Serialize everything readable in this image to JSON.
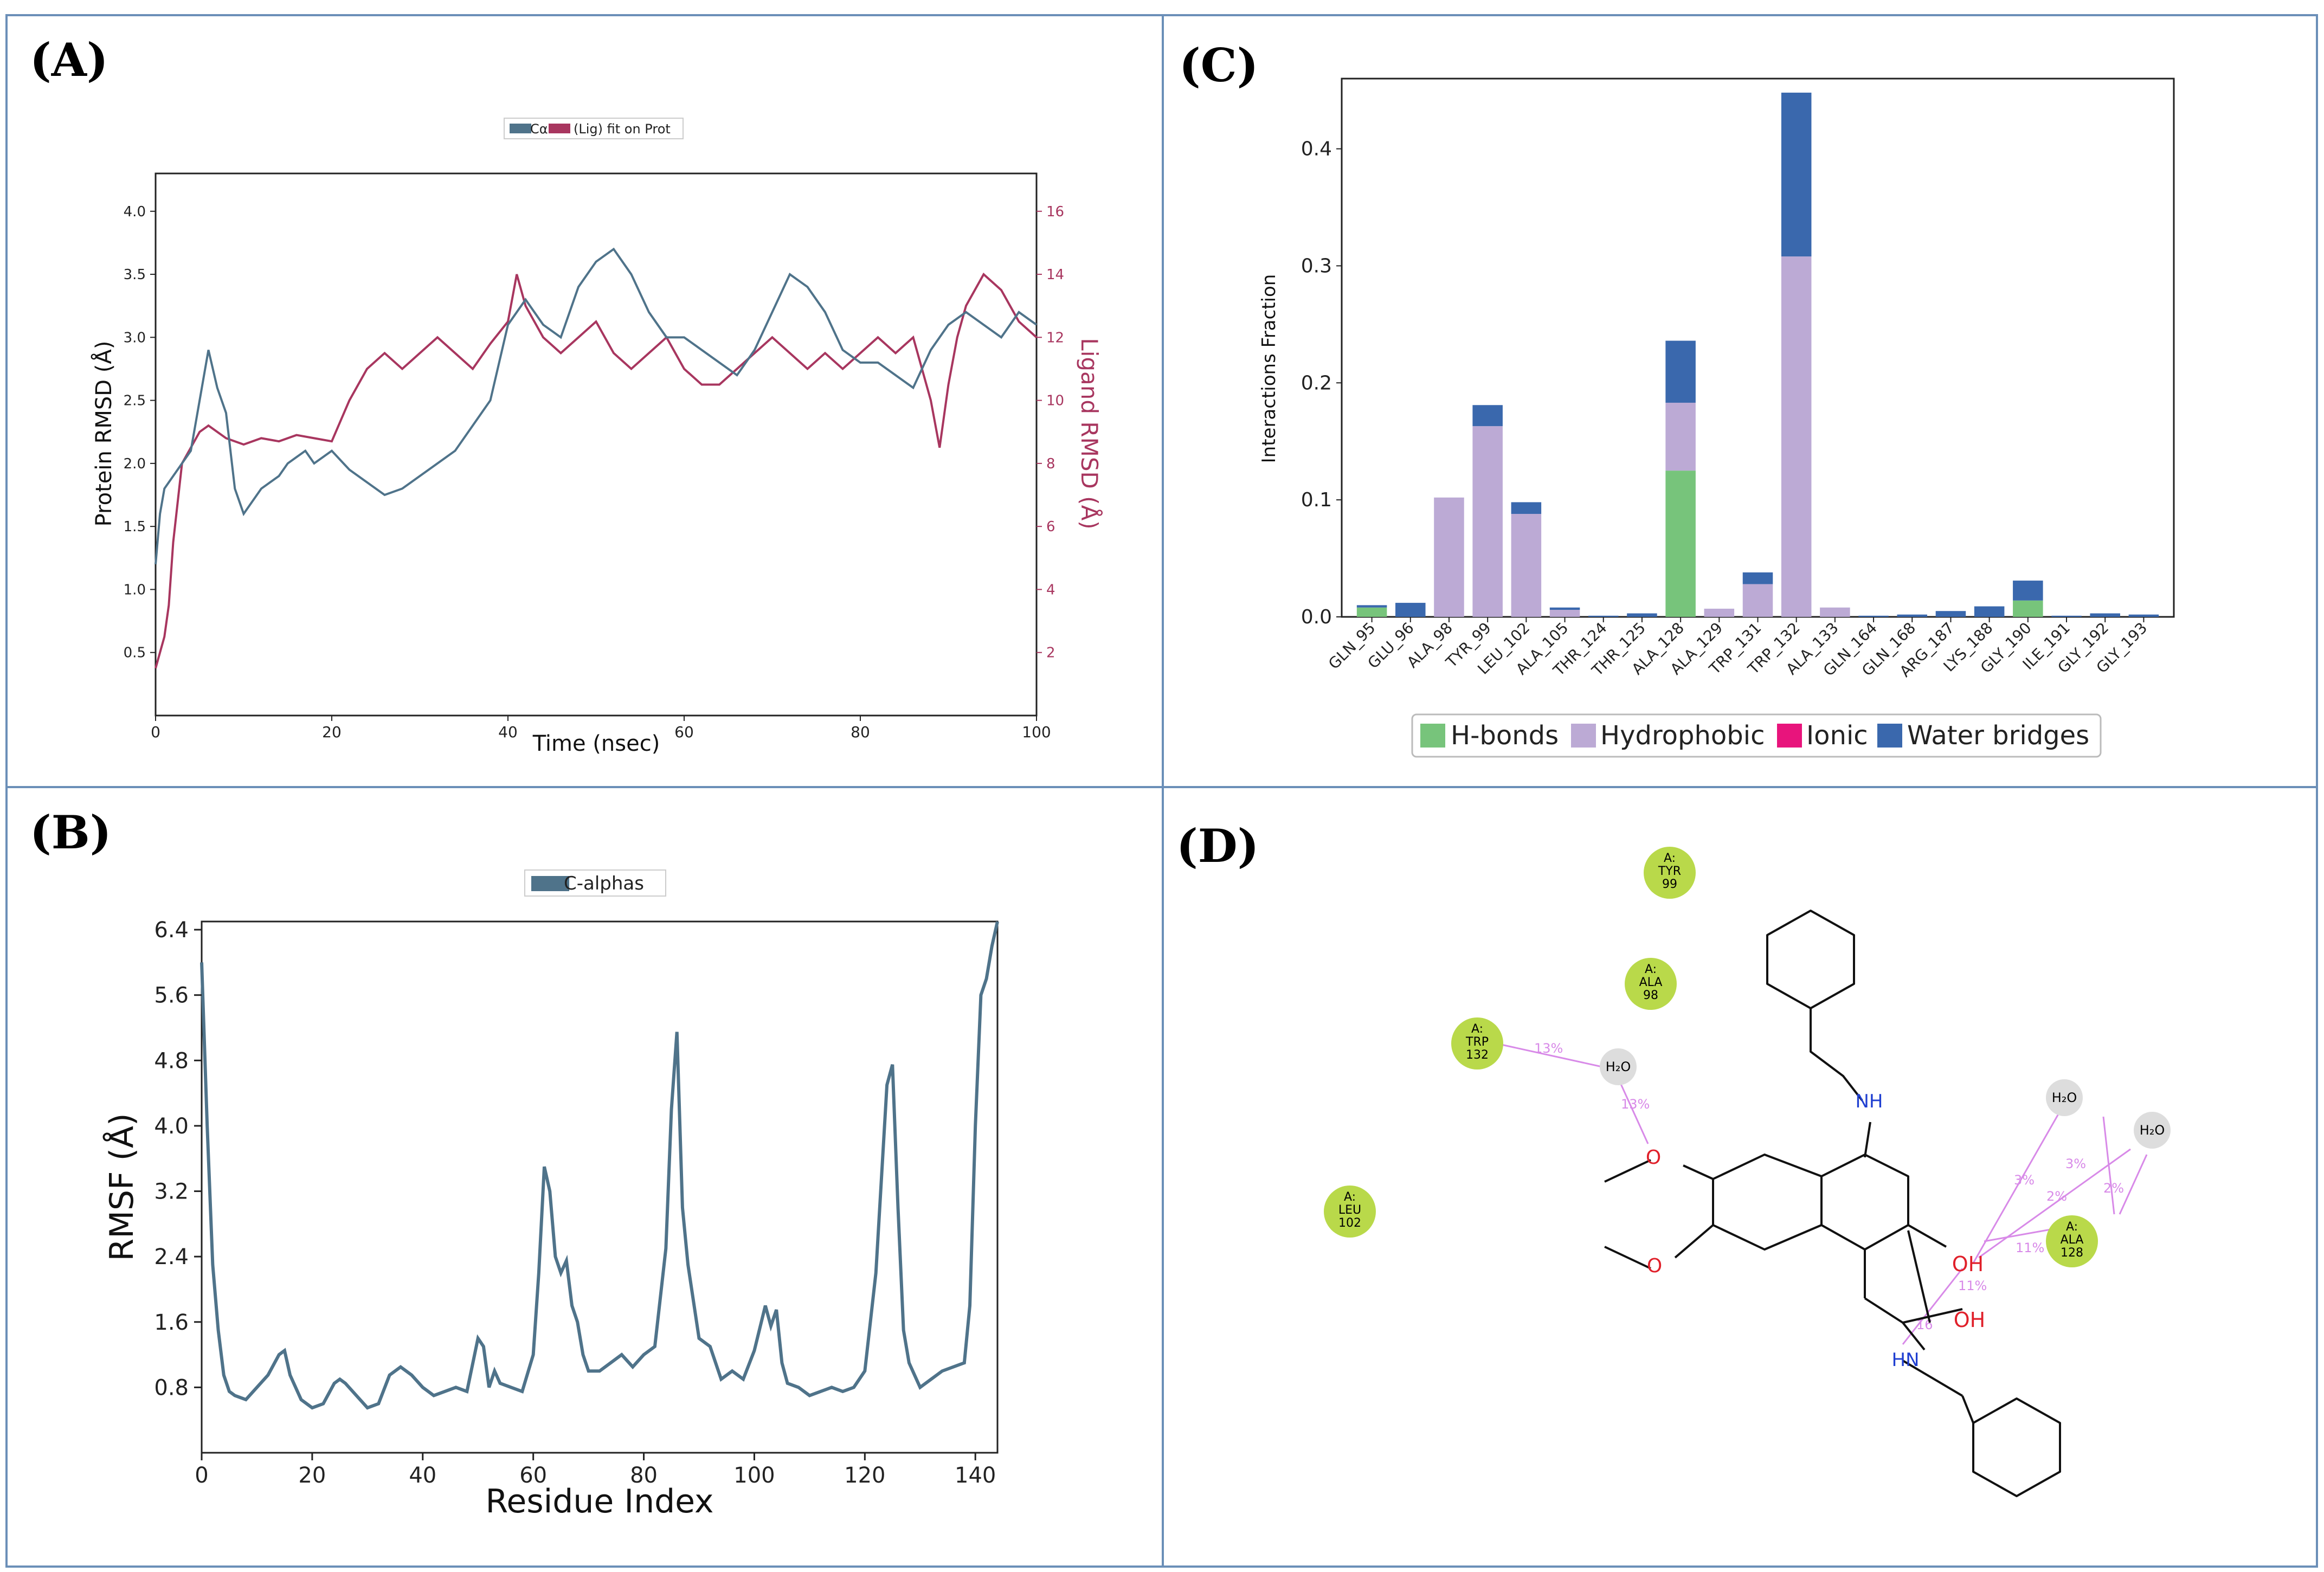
{
  "panels": {
    "A": {
      "label": "(A)"
    },
    "B": {
      "label": "(B)"
    },
    "C": {
      "label": "(C)"
    },
    "D": {
      "label": "(D)"
    }
  },
  "colors": {
    "protein": "#4f738a",
    "ligand": "#a8365f",
    "hbond": "#77c47b",
    "hydrophobic": "#bcaad5",
    "ionic": "#e8147c",
    "water": "#3a68ad",
    "residue": "#b9d94a",
    "water_node": "#dddddd",
    "interaction_line": "#d88ae8",
    "border": "#6b8fb8"
  },
  "chart_data": [
    {
      "id": "A",
      "type": "line",
      "legend": [
        "Cα",
        "(Lig) fit on Prot"
      ],
      "xlabel": "Time (nsec)",
      "ylabel": "Protein RMSD (Å)",
      "y2label": "Ligand RMSD (Å)",
      "xlim": [
        0,
        100
      ],
      "ylim": [
        0,
        4.3
      ],
      "y2lim": [
        0,
        17.2
      ],
      "xticks": [
        "0",
        "20",
        "40",
        "60",
        "80",
        "100"
      ],
      "xtick_values": [
        0,
        20,
        40,
        60,
        80,
        100
      ],
      "yticks": [
        "0.5",
        "1.0",
        "1.5",
        "2.0",
        "2.5",
        "3.0",
        "3.5",
        "4.0"
      ],
      "ytick_values": [
        0.5,
        1.0,
        1.5,
        2.0,
        2.5,
        3.0,
        3.5,
        4.0
      ],
      "y2ticks": [
        "2",
        "4",
        "6",
        "8",
        "10",
        "12",
        "14",
        "16"
      ],
      "y2tick_values": [
        2,
        4,
        6,
        8,
        10,
        12,
        14,
        16
      ],
      "series": [
        {
          "name": "Cα",
          "axis": "left",
          "x": [
            0,
            0.5,
            1,
            2,
            3,
            4,
            5,
            6,
            7,
            8,
            9,
            10,
            11,
            12,
            13,
            14,
            15,
            16,
            17,
            18,
            19,
            20,
            22,
            24,
            26,
            28,
            30,
            32,
            34,
            36,
            38,
            40,
            42,
            44,
            46,
            48,
            50,
            52,
            54,
            56,
            58,
            60,
            62,
            64,
            66,
            68,
            70,
            72,
            74,
            76,
            78,
            80,
            82,
            84,
            86,
            88,
            90,
            92,
            94,
            96,
            98,
            100
          ],
          "values": [
            1.2,
            1.6,
            1.8,
            1.9,
            2.0,
            2.1,
            2.5,
            2.9,
            2.6,
            2.4,
            1.8,
            1.6,
            1.7,
            1.8,
            1.85,
            1.9,
            2.0,
            2.05,
            2.1,
            2.0,
            2.05,
            2.1,
            1.95,
            1.85,
            1.75,
            1.8,
            1.9,
            2.0,
            2.1,
            2.3,
            2.5,
            3.1,
            3.3,
            3.1,
            3.0,
            3.4,
            3.6,
            3.7,
            3.5,
            3.2,
            3.0,
            3.0,
            2.9,
            2.8,
            2.7,
            2.9,
            3.2,
            3.5,
            3.4,
            3.2,
            2.9,
            2.8,
            2.8,
            2.7,
            2.6,
            2.9,
            3.1,
            3.2,
            3.1,
            3.0,
            3.2,
            3.1
          ]
        },
        {
          "name": "(Lig) fit on Prot",
          "axis": "right",
          "x": [
            0,
            0.5,
            1,
            1.5,
            2,
            3,
            4,
            5,
            6,
            8,
            10,
            12,
            14,
            16,
            18,
            20,
            22,
            24,
            26,
            28,
            30,
            32,
            34,
            36,
            38,
            40,
            41,
            42,
            44,
            46,
            48,
            50,
            52,
            54,
            56,
            58,
            60,
            62,
            64,
            66,
            68,
            70,
            72,
            74,
            76,
            78,
            80,
            82,
            84,
            86,
            88,
            89,
            90,
            91,
            92,
            94,
            96,
            98,
            100
          ],
          "values": [
            1.5,
            2.0,
            2.5,
            3.5,
            5.5,
            8.0,
            8.5,
            9.0,
            9.2,
            8.8,
            8.6,
            8.8,
            8.7,
            8.9,
            8.8,
            8.7,
            10.0,
            11.0,
            11.5,
            11.0,
            11.5,
            12.0,
            11.5,
            11.0,
            11.8,
            12.5,
            14.0,
            13.0,
            12.0,
            11.5,
            12.0,
            12.5,
            11.5,
            11.0,
            11.5,
            12.0,
            11.0,
            10.5,
            10.5,
            11.0,
            11.5,
            12.0,
            11.5,
            11.0,
            11.5,
            11.0,
            11.5,
            12.0,
            11.5,
            12.0,
            10.0,
            8.5,
            10.5,
            12.0,
            13.0,
            14.0,
            13.5,
            12.5,
            12.0
          ]
        }
      ]
    },
    {
      "id": "B",
      "type": "line",
      "legend": [
        "C-alphas"
      ],
      "xlabel": "Residue Index",
      "ylabel": "RMSF (Å)",
      "xlim": [
        0,
        144
      ],
      "ylim": [
        0,
        6.5
      ],
      "xticks": [
        "0",
        "20",
        "40",
        "60",
        "80",
        "100",
        "120",
        "140"
      ],
      "xtick_values": [
        0,
        20,
        40,
        60,
        80,
        100,
        120,
        140
      ],
      "yticks": [
        "0.8",
        "1.6",
        "2.4",
        "3.2",
        "4.0",
        "4.8",
        "5.6",
        "6.4"
      ],
      "ytick_values": [
        0.8,
        1.6,
        2.4,
        3.2,
        4.0,
        4.8,
        5.6,
        6.4
      ],
      "series": [
        {
          "name": "C-alphas",
          "x": [
            0,
            1,
            2,
            3,
            4,
            5,
            6,
            8,
            10,
            12,
            14,
            15,
            16,
            18,
            20,
            22,
            24,
            25,
            26,
            28,
            30,
            32,
            34,
            36,
            38,
            40,
            42,
            44,
            46,
            48,
            50,
            51,
            52,
            53,
            54,
            56,
            58,
            60,
            61,
            62,
            63,
            64,
            65,
            66,
            67,
            68,
            69,
            70,
            72,
            74,
            76,
            78,
            80,
            82,
            84,
            85,
            86,
            87,
            88,
            90,
            92,
            94,
            96,
            98,
            100,
            102,
            103,
            104,
            105,
            106,
            108,
            110,
            112,
            114,
            116,
            118,
            120,
            122,
            124,
            125,
            126,
            127,
            128,
            130,
            132,
            134,
            136,
            138,
            139,
            140,
            141,
            142,
            143,
            144
          ],
          "values": [
            6.0,
            4.0,
            2.3,
            1.5,
            0.95,
            0.75,
            0.7,
            0.65,
            0.8,
            0.95,
            1.2,
            1.25,
            0.95,
            0.65,
            0.55,
            0.6,
            0.85,
            0.9,
            0.85,
            0.7,
            0.55,
            0.6,
            0.95,
            1.05,
            0.95,
            0.8,
            0.7,
            0.75,
            0.8,
            0.75,
            1.4,
            1.3,
            0.8,
            1.0,
            0.85,
            0.8,
            0.75,
            1.2,
            2.2,
            3.5,
            3.2,
            2.4,
            2.2,
            2.35,
            1.8,
            1.6,
            1.2,
            1.0,
            1.0,
            1.1,
            1.2,
            1.05,
            1.2,
            1.3,
            2.5,
            4.2,
            5.15,
            3.0,
            2.3,
            1.4,
            1.3,
            0.9,
            1.0,
            0.9,
            1.25,
            1.8,
            1.55,
            1.75,
            1.1,
            0.85,
            0.8,
            0.7,
            0.75,
            0.8,
            0.75,
            0.8,
            1.0,
            2.2,
            4.5,
            4.75,
            3.0,
            1.5,
            1.1,
            0.8,
            0.9,
            1.0,
            1.05,
            1.1,
            1.8,
            4.0,
            5.6,
            5.8,
            6.2,
            6.5
          ]
        }
      ]
    },
    {
      "id": "C",
      "type": "bar",
      "stacked": true,
      "ylabel": "Interactions Fraction",
      "ylim": [
        0,
        0.46
      ],
      "yticks": [
        "0.0",
        "0.1",
        "0.2",
        "0.3",
        "0.4"
      ],
      "ytick_values": [
        0.0,
        0.1,
        0.2,
        0.3,
        0.4
      ],
      "categories": [
        "GLN_95",
        "GLU_96",
        "ALA_98",
        "TYR_99",
        "LEU_102",
        "ALA_105",
        "THR_124",
        "THR_125",
        "ALA_128",
        "ALA_129",
        "TRP_131",
        "TRP_132",
        "ALA_133",
        "GLN_164",
        "GLN_168",
        "ARG_187",
        "LYS_188",
        "GLY_190",
        "ILE_191",
        "GLY_192",
        "GLY_193"
      ],
      "legend": [
        "H-bonds",
        "Hydrophobic",
        "Ionic",
        "Water bridges"
      ],
      "series": [
        {
          "name": "H-bonds",
          "values": [
            0.008,
            0,
            0,
            0,
            0,
            0,
            0,
            0,
            0.125,
            0,
            0,
            0,
            0,
            0,
            0,
            0,
            0,
            0.014,
            0,
            0,
            0
          ]
        },
        {
          "name": "Hydrophobic",
          "values": [
            0,
            0,
            0.102,
            0.163,
            0.088,
            0.006,
            0,
            0,
            0.058,
            0.007,
            0.028,
            0.308,
            0.008,
            0,
            0,
            0,
            0,
            0,
            0,
            0,
            0
          ]
        },
        {
          "name": "Ionic",
          "values": [
            0,
            0,
            0,
            0,
            0,
            0,
            0,
            0,
            0,
            0,
            0,
            0,
            0,
            0,
            0,
            0,
            0,
            0,
            0,
            0,
            0
          ]
        },
        {
          "name": "Water bridges",
          "values": [
            0.002,
            0.012,
            0,
            0.018,
            0.01,
            0.002,
            0.001,
            0.003,
            0.053,
            0,
            0.01,
            0.14,
            0,
            0.001,
            0.002,
            0.005,
            0.009,
            0.017,
            0.001,
            0.003,
            0.002
          ]
        }
      ]
    }
  ],
  "interaction_diagram": {
    "residues": [
      {
        "id": "tyr99",
        "chain": "A:",
        "name": "TYR",
        "num": "99"
      },
      {
        "id": "ala98",
        "chain": "A:",
        "name": "ALA",
        "num": "98"
      },
      {
        "id": "trp132",
        "chain": "A:",
        "name": "TRP",
        "num": "132"
      },
      {
        "id": "leu102",
        "chain": "A:",
        "name": "LEU",
        "num": "102"
      },
      {
        "id": "ala128",
        "chain": "A:",
        "name": "ALA",
        "num": "128"
      }
    ],
    "waters": [
      "H₂O",
      "H₂O",
      "H₂O"
    ],
    "atoms": {
      "nh_top": "NH",
      "o1": "O",
      "o2": "O",
      "oh1": "OH",
      "oh2": "OH",
      "hn_bottom": "HN"
    },
    "percentages": [
      "13%",
      "13%",
      "3%",
      "3%",
      "2%",
      "2%",
      "11%",
      "11%",
      "16"
    ]
  }
}
